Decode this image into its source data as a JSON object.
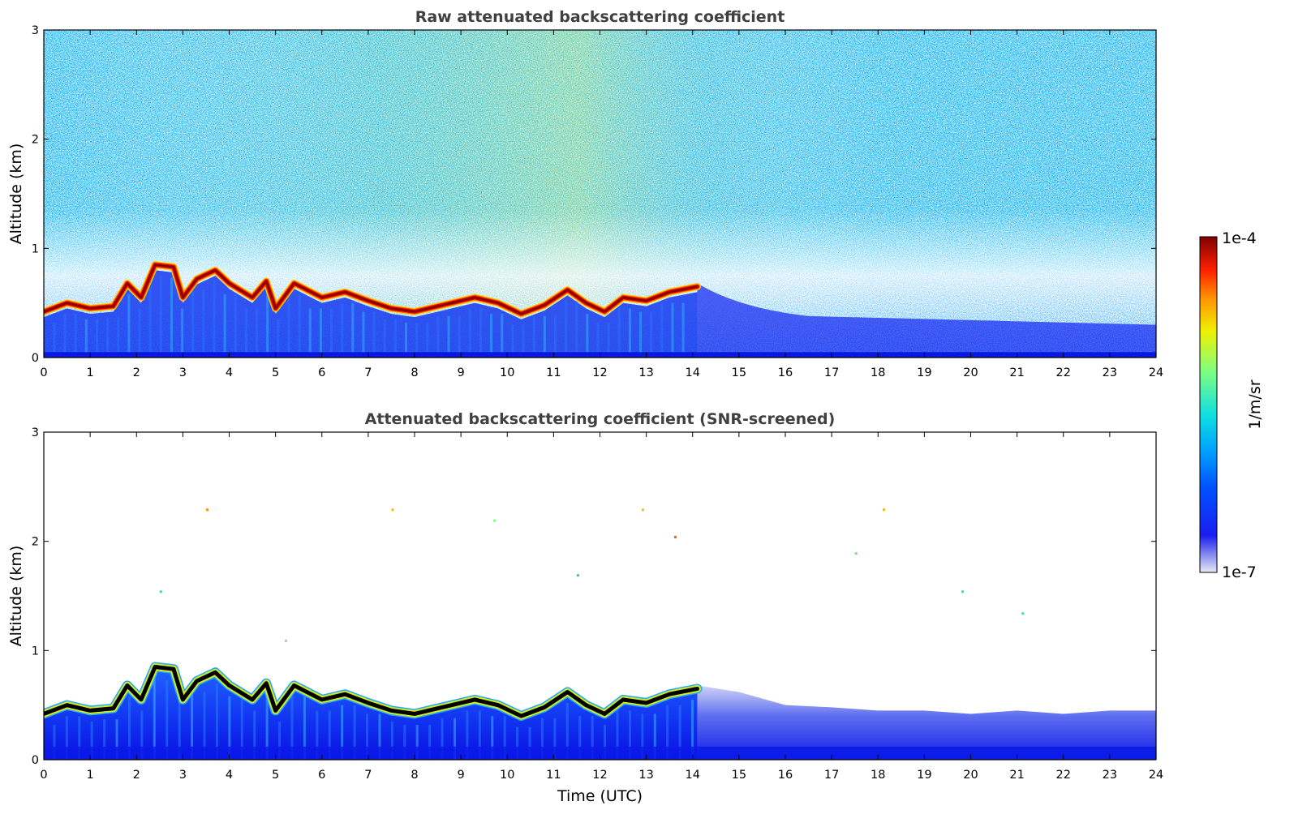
{
  "chart_data": [
    {
      "type": "heatmap",
      "title": "Raw attenuated backscattering coefficient",
      "xlabel": "",
      "ylabel": "Altitude (km)",
      "xlim": [
        0,
        24
      ],
      "ylim": [
        0,
        3
      ],
      "x_ticks": [
        "0",
        "1",
        "2",
        "3",
        "4",
        "5",
        "6",
        "7",
        "8",
        "9",
        "10",
        "11",
        "12",
        "13",
        "14",
        "15",
        "16",
        "17",
        "18",
        "19",
        "20",
        "21",
        "22",
        "23",
        "24"
      ],
      "y_ticks": [
        "0",
        "1",
        "2",
        "3"
      ],
      "grid": false,
      "layer_top_km": [
        [
          0,
          0.42
        ],
        [
          0.5,
          0.5
        ],
        [
          1,
          0.45
        ],
        [
          1.5,
          0.47
        ],
        [
          1.8,
          0.68
        ],
        [
          2.1,
          0.55
        ],
        [
          2.4,
          0.85
        ],
        [
          2.8,
          0.83
        ],
        [
          3,
          0.55
        ],
        [
          3.3,
          0.72
        ],
        [
          3.7,
          0.8
        ],
        [
          4,
          0.68
        ],
        [
          4.5,
          0.55
        ],
        [
          4.8,
          0.7
        ],
        [
          5,
          0.45
        ],
        [
          5.4,
          0.68
        ],
        [
          6,
          0.55
        ],
        [
          6.5,
          0.6
        ],
        [
          7,
          0.52
        ],
        [
          7.5,
          0.45
        ],
        [
          8,
          0.42
        ],
        [
          8.6,
          0.48
        ],
        [
          9.3,
          0.55
        ],
        [
          9.8,
          0.5
        ],
        [
          10.3,
          0.4
        ],
        [
          10.8,
          0.48
        ],
        [
          11.3,
          0.62
        ],
        [
          11.7,
          0.5
        ],
        [
          12.1,
          0.42
        ],
        [
          12.5,
          0.55
        ],
        [
          13,
          0.52
        ],
        [
          13.5,
          0.6
        ],
        [
          14.1,
          0.65
        ]
      ]
    },
    {
      "type": "heatmap",
      "title": "Attenuated backscattering coefficient (SNR-screened)",
      "xlabel": "Time (UTC)",
      "ylabel": "Altitude (km)",
      "xlim": [
        0,
        24
      ],
      "ylim": [
        0,
        3
      ],
      "x_ticks": [
        "0",
        "1",
        "2",
        "3",
        "4",
        "5",
        "6",
        "7",
        "8",
        "9",
        "10",
        "11",
        "12",
        "13",
        "14",
        "15",
        "16",
        "17",
        "18",
        "19",
        "20",
        "21",
        "22",
        "23",
        "24"
      ],
      "y_ticks": [
        "0",
        "1",
        "2",
        "3"
      ],
      "grid": false,
      "screened_layer_top_km": [
        [
          14.1,
          0.68
        ],
        [
          15,
          0.62
        ],
        [
          16,
          0.5
        ],
        [
          17,
          0.48
        ],
        [
          18,
          0.45
        ],
        [
          19,
          0.45
        ],
        [
          20,
          0.42
        ],
        [
          21,
          0.45
        ],
        [
          22,
          0.42
        ],
        [
          23,
          0.45
        ],
        [
          24,
          0.45
        ]
      ]
    }
  ],
  "colorbar": {
    "max_label": "1e-4",
    "min_label": "1e-7",
    "unit_label": "1/m/sr",
    "scale": "log",
    "range": [
      1e-07,
      0.0001
    ]
  },
  "colors": {
    "background": "#ffffff",
    "title": "#404040",
    "low": "#e6e8f8",
    "high": "#800000"
  }
}
